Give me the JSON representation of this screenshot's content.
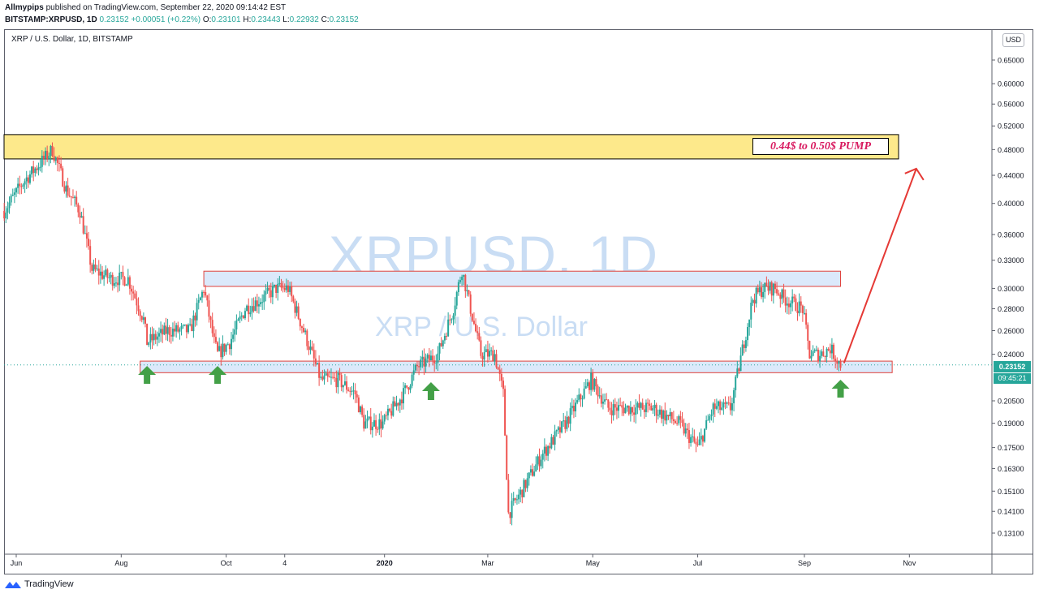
{
  "header": {
    "author": "Allmypips",
    "published_text": "published on TradingView.com, September 22, 2020 09:14:42 EST",
    "symbol": "BITSTAMP:XRPUSD, 1D",
    "last": "0.23152",
    "change": "+0.00051 (+0.22%)",
    "ohlc": [
      {
        "label": "O:",
        "value": "0.23101"
      },
      {
        "label": "H:",
        "value": "0.23443"
      },
      {
        "label": "L:",
        "value": "0.22932"
      },
      {
        "label": "C:",
        "value": "0.23152"
      }
    ]
  },
  "chart_title": "XRP / U.S. Dollar, 1D, BITSTAMP",
  "watermark": {
    "symbol": "XRPUSD, 1D",
    "name": "XRP / U.S. Dollar"
  },
  "currency_button": "USD",
  "annotation": {
    "pump_label": "0.44$ to 0.50$ PUMP"
  },
  "price_tag": "0.23152",
  "countdown": "09:45:21",
  "footer": {
    "brand": "TradingView"
  },
  "colors": {
    "up": "#26a69a",
    "down": "#ef5350",
    "zone_yellow": "#fde98b",
    "zone_blue": "#dbe9fb",
    "zone_border": "#e0413b",
    "arrow_red": "#e53935",
    "arrow_green": "#43a047"
  },
  "chart_data": {
    "type": "candlestick",
    "title": "XRP / U.S. Dollar, 1D, BITSTAMP",
    "y_scale": "log",
    "ylim": [
      0.12,
      0.7
    ],
    "y_ticks": [
      "0.65000",
      "0.60000",
      "0.56000",
      "0.52000",
      "0.48000",
      "0.44000",
      "0.40000",
      "0.36000",
      "0.33000",
      "0.30000",
      "0.28000",
      "0.26000",
      "0.24000",
      "0.20500",
      "0.19000",
      "0.17500",
      "0.16300",
      "0.15100",
      "0.14100",
      "0.13100"
    ],
    "x_ticks": [
      "Jun",
      "Aug",
      "Oct",
      "4",
      "2020",
      "Mar",
      "May",
      "Jul",
      "Sep",
      "Nov"
    ],
    "x_range": [
      "2019-05-25",
      "2020-11-20"
    ],
    "trend_path": [
      {
        "date": "2019-05-25",
        "close": 0.39
      },
      {
        "date": "2019-06-05",
        "close": 0.43
      },
      {
        "date": "2019-06-22",
        "close": 0.48
      },
      {
        "date": "2019-06-30",
        "close": 0.42
      },
      {
        "date": "2019-07-08",
        "close": 0.39
      },
      {
        "date": "2019-07-15",
        "close": 0.32
      },
      {
        "date": "2019-07-26",
        "close": 0.31
      },
      {
        "date": "2019-08-05",
        "close": 0.31
      },
      {
        "date": "2019-08-14",
        "close": 0.27
      },
      {
        "date": "2019-08-16",
        "close": 0.25
      },
      {
        "date": "2019-08-28",
        "close": 0.26
      },
      {
        "date": "2019-09-10",
        "close": 0.26
      },
      {
        "date": "2019-09-18",
        "close": 0.3
      },
      {
        "date": "2019-09-24",
        "close": 0.25
      },
      {
        "date": "2019-09-26",
        "close": 0.24
      },
      {
        "date": "2019-10-03",
        "close": 0.25
      },
      {
        "date": "2019-10-12",
        "close": 0.28
      },
      {
        "date": "2019-10-22",
        "close": 0.29
      },
      {
        "date": "2019-10-30",
        "close": 0.3
      },
      {
        "date": "2019-11-06",
        "close": 0.3
      },
      {
        "date": "2019-11-15",
        "close": 0.26
      },
      {
        "date": "2019-11-25",
        "close": 0.22
      },
      {
        "date": "2019-12-05",
        "close": 0.22
      },
      {
        "date": "2019-12-15",
        "close": 0.21
      },
      {
        "date": "2019-12-20",
        "close": 0.19
      },
      {
        "date": "2019-12-31",
        "close": 0.19
      },
      {
        "date": "2020-01-12",
        "close": 0.21
      },
      {
        "date": "2020-01-20",
        "close": 0.23
      },
      {
        "date": "2020-02-01",
        "close": 0.24
      },
      {
        "date": "2020-02-10",
        "close": 0.28
      },
      {
        "date": "2020-02-15",
        "close": 0.32
      },
      {
        "date": "2020-02-20",
        "close": 0.28
      },
      {
        "date": "2020-02-26",
        "close": 0.24
      },
      {
        "date": "2020-03-05",
        "close": 0.24
      },
      {
        "date": "2020-03-10",
        "close": 0.21
      },
      {
        "date": "2020-03-13",
        "close": 0.14
      },
      {
        "date": "2020-03-20",
        "close": 0.15
      },
      {
        "date": "2020-04-01",
        "close": 0.17
      },
      {
        "date": "2020-04-15",
        "close": 0.19
      },
      {
        "date": "2020-04-30",
        "close": 0.22
      },
      {
        "date": "2020-05-10",
        "close": 0.2
      },
      {
        "date": "2020-05-25",
        "close": 0.2
      },
      {
        "date": "2020-06-05",
        "close": 0.2
      },
      {
        "date": "2020-06-20",
        "close": 0.19
      },
      {
        "date": "2020-07-01",
        "close": 0.175
      },
      {
        "date": "2020-07-10",
        "close": 0.2
      },
      {
        "date": "2020-07-20",
        "close": 0.2
      },
      {
        "date": "2020-07-25",
        "close": 0.23
      },
      {
        "date": "2020-08-02",
        "close": 0.29
      },
      {
        "date": "2020-08-08",
        "close": 0.3
      },
      {
        "date": "2020-08-15",
        "close": 0.3
      },
      {
        "date": "2020-08-20",
        "close": 0.29
      },
      {
        "date": "2020-08-31",
        "close": 0.28
      },
      {
        "date": "2020-09-04",
        "close": 0.24
      },
      {
        "date": "2020-09-10",
        "close": 0.24
      },
      {
        "date": "2020-09-16",
        "close": 0.245
      },
      {
        "date": "2020-09-22",
        "close": 0.23152
      }
    ],
    "zones": [
      {
        "name": "resistance-yellow",
        "from": "2019-05-25",
        "to": "2020-10-30",
        "low": 0.465,
        "high": 0.505
      },
      {
        "name": "resistance-blue",
        "from": "2019-09-18",
        "to": "2020-09-22",
        "low": 0.302,
        "high": 0.318
      },
      {
        "name": "support-blue",
        "from": "2019-08-12",
        "to": "2020-10-22",
        "low": 0.2255,
        "high": 0.2345
      }
    ],
    "support_arrows": [
      "2019-08-16",
      "2019-09-26",
      "2020-01-28",
      "2020-09-22"
    ],
    "projection": {
      "from": {
        "date": "2020-09-24",
        "price": 0.233
      },
      "to": {
        "date": "2020-11-05",
        "price": 0.45
      }
    }
  }
}
